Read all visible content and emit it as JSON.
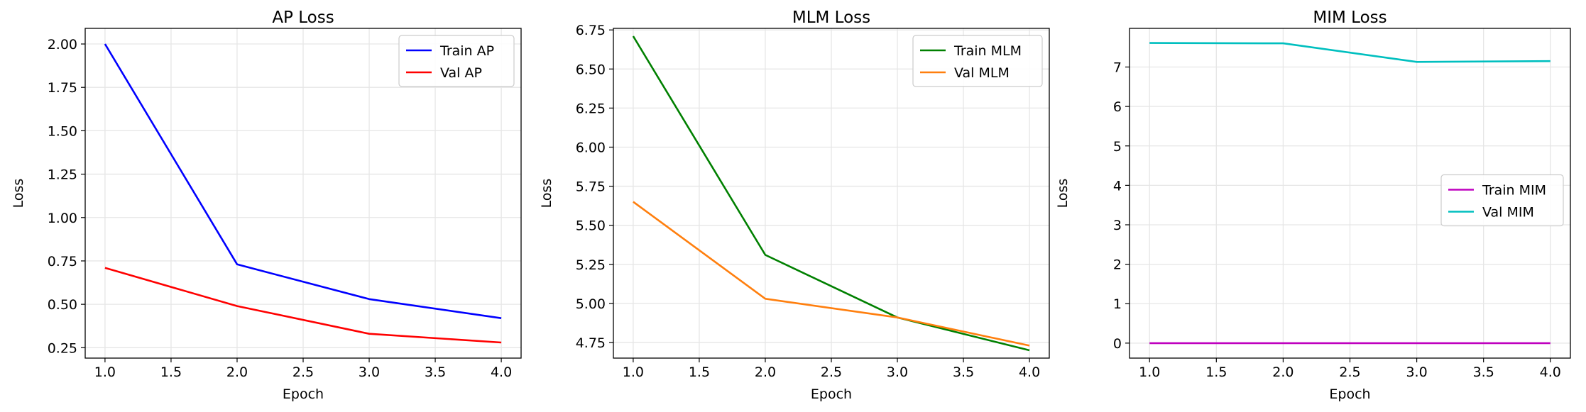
{
  "chart_data": [
    {
      "type": "line",
      "title": "AP Loss",
      "xlabel": "Epoch",
      "ylabel": "Loss",
      "x": [
        1.0,
        2.0,
        3.0,
        4.0
      ],
      "xlim": [
        0.85,
        4.15
      ],
      "ylim": [
        0.19,
        2.09
      ],
      "xticks": [
        "1.0",
        "1.5",
        "2.0",
        "2.5",
        "3.0",
        "3.5",
        "4.0"
      ],
      "xtick_values": [
        1.0,
        1.5,
        2.0,
        2.5,
        3.0,
        3.5,
        4.0
      ],
      "yticks": [
        "0.25",
        "0.50",
        "0.75",
        "1.00",
        "1.25",
        "1.50",
        "1.75",
        "2.00"
      ],
      "ytick_values": [
        0.25,
        0.5,
        0.75,
        1.0,
        1.25,
        1.5,
        1.75,
        2.0
      ],
      "grid": true,
      "legend_position": "top-right",
      "series": [
        {
          "name": "Train AP",
          "color": "#0000ff",
          "values": [
            2.0,
            0.73,
            0.53,
            0.42
          ]
        },
        {
          "name": "Val AP",
          "color": "#ff0000",
          "values": [
            0.71,
            0.49,
            0.33,
            0.28
          ]
        }
      ]
    },
    {
      "type": "line",
      "title": "MLM Loss",
      "xlabel": "Epoch",
      "ylabel": "Loss",
      "x": [
        1.0,
        2.0,
        3.0,
        4.0
      ],
      "xlim": [
        0.85,
        4.15
      ],
      "ylim": [
        4.65,
        6.76
      ],
      "xticks": [
        "1.0",
        "1.5",
        "2.0",
        "2.5",
        "3.0",
        "3.5",
        "4.0"
      ],
      "xtick_values": [
        1.0,
        1.5,
        2.0,
        2.5,
        3.0,
        3.5,
        4.0
      ],
      "yticks": [
        "4.75",
        "5.00",
        "5.25",
        "5.50",
        "5.75",
        "6.00",
        "6.25",
        "6.50",
        "6.75"
      ],
      "ytick_values": [
        4.75,
        5.0,
        5.25,
        5.5,
        5.75,
        6.0,
        6.25,
        6.5,
        6.75
      ],
      "grid": true,
      "legend_position": "top-right",
      "series": [
        {
          "name": "Train MLM",
          "color": "#008000",
          "values": [
            6.71,
            5.31,
            4.91,
            4.7
          ]
        },
        {
          "name": "Val MLM",
          "color": "#ff7f0e",
          "values": [
            5.65,
            5.03,
            4.91,
            4.73
          ]
        }
      ]
    },
    {
      "type": "line",
      "title": "MIM Loss",
      "xlabel": "Epoch",
      "ylabel": "Loss",
      "x": [
        1.0,
        2.0,
        3.0,
        4.0
      ],
      "xlim": [
        0.85,
        4.15
      ],
      "ylim": [
        -0.38,
        7.98
      ],
      "xticks": [
        "1.0",
        "1.5",
        "2.0",
        "2.5",
        "3.0",
        "3.5",
        "4.0"
      ],
      "xtick_values": [
        1.0,
        1.5,
        2.0,
        2.5,
        3.0,
        3.5,
        4.0
      ],
      "yticks": [
        "0",
        "1",
        "2",
        "3",
        "4",
        "5",
        "6",
        "7"
      ],
      "ytick_values": [
        0,
        1,
        2,
        3,
        4,
        5,
        6,
        7
      ],
      "grid": true,
      "legend_position": "center-right",
      "series": [
        {
          "name": "Train MIM",
          "color": "#bf00bf",
          "values": [
            0.0,
            0.0,
            0.0,
            0.0
          ]
        },
        {
          "name": "Val MIM",
          "color": "#00bfbf",
          "values": [
            7.61,
            7.6,
            7.13,
            7.15
          ]
        }
      ]
    }
  ]
}
